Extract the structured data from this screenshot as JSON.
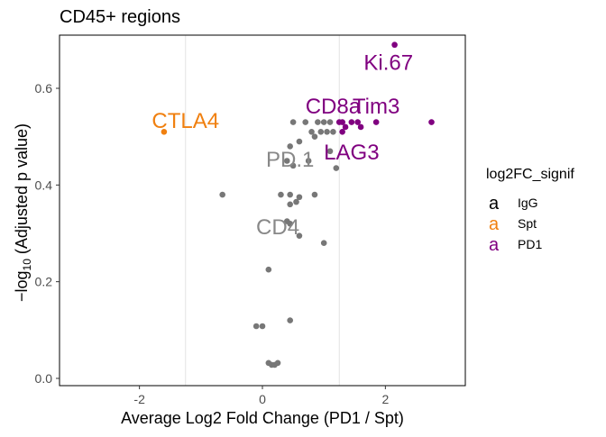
{
  "chart_data": {
    "type": "scatter",
    "title": "CD45+ regions",
    "xlabel": "Average Log2 Fold Change (PD1 / Spt)",
    "ylabel_prefix": "−log",
    "ylabel_sub": "10",
    "ylabel_suffix": " (Adjusted p value)",
    "xlim": [
      -3.3,
      3.3
    ],
    "ylim": [
      -0.015,
      0.71
    ],
    "x_ticks": [
      {
        "value": -2,
        "label": "-2"
      },
      {
        "value": 0,
        "label": "0"
      },
      {
        "value": 2,
        "label": "2"
      }
    ],
    "y_ticks": [
      {
        "value": 0.0,
        "label": "0.0"
      },
      {
        "value": 0.2,
        "label": "0.2"
      },
      {
        "value": 0.4,
        "label": "0.4"
      },
      {
        "value": 0.6,
        "label": "0.6"
      }
    ],
    "vlines": [
      -1.25,
      1.25
    ],
    "legend": {
      "title": "log2FC_signif",
      "placement": "right",
      "entries": [
        {
          "key": "a",
          "label": "IgG",
          "color": "#000000"
        },
        {
          "key": "a",
          "label": "Spt",
          "color": "#F08010"
        },
        {
          "key": "a",
          "label": "PD1",
          "color": "#800080"
        }
      ]
    },
    "series": [
      {
        "name": "ns",
        "color": "#777777",
        "points": [
          [
            0.5,
            0.53
          ],
          [
            0.7,
            0.53
          ],
          [
            0.9,
            0.53
          ],
          [
            1.0,
            0.53
          ],
          [
            1.1,
            0.53
          ],
          [
            0.8,
            0.51
          ],
          [
            0.95,
            0.51
          ],
          [
            1.05,
            0.51
          ],
          [
            1.15,
            0.51
          ],
          [
            0.6,
            0.49
          ],
          [
            0.85,
            0.5
          ],
          [
            0.45,
            0.48
          ],
          [
            1.1,
            0.47
          ],
          [
            0.4,
            0.45
          ],
          [
            0.5,
            0.44
          ],
          [
            0.75,
            0.45
          ],
          [
            1.2,
            0.435
          ],
          [
            -0.65,
            0.38
          ],
          [
            0.3,
            0.38
          ],
          [
            0.45,
            0.38
          ],
          [
            0.6,
            0.375
          ],
          [
            0.85,
            0.38
          ],
          [
            0.45,
            0.36
          ],
          [
            0.55,
            0.365
          ],
          [
            0.4,
            0.325
          ],
          [
            0.45,
            0.32
          ],
          [
            0.6,
            0.295
          ],
          [
            1.0,
            0.28
          ],
          [
            0.1,
            0.225
          ],
          [
            0.45,
            0.12
          ],
          [
            -0.1,
            0.108
          ],
          [
            0.0,
            0.108
          ],
          [
            0.1,
            0.032
          ],
          [
            0.15,
            0.028
          ],
          [
            0.2,
            0.028
          ],
          [
            0.25,
            0.032
          ]
        ]
      },
      {
        "name": "Spt",
        "color": "#F08010",
        "points": [
          [
            -1.6,
            0.51
          ]
        ]
      },
      {
        "name": "PD1",
        "color": "#800080",
        "points": [
          [
            2.15,
            0.69
          ],
          [
            2.75,
            0.53
          ],
          [
            1.85,
            0.53
          ],
          [
            1.25,
            0.53
          ],
          [
            1.3,
            0.53
          ],
          [
            1.45,
            0.53
          ],
          [
            1.55,
            0.53
          ],
          [
            1.35,
            0.52
          ],
          [
            1.6,
            0.52
          ],
          [
            1.3,
            0.51
          ]
        ]
      }
    ],
    "annotations": [
      {
        "text": "Ki.67",
        "x": 2.05,
        "y": 0.655,
        "color": "#800080"
      },
      {
        "text": "Tim3",
        "x": 1.85,
        "y": 0.565,
        "color": "#800080"
      },
      {
        "text": "CD8a",
        "x": 1.15,
        "y": 0.565,
        "color": "#800080"
      },
      {
        "text": "LAG3",
        "x": 1.45,
        "y": 0.47,
        "color": "#800080"
      },
      {
        "text": "CTLA4",
        "x": -1.25,
        "y": 0.535,
        "color": "#F08010"
      },
      {
        "text": "PD.1",
        "x": 0.45,
        "y": 0.455,
        "color": "#888888"
      },
      {
        "text": "CD4",
        "x": 0.25,
        "y": 0.315,
        "color": "#888888"
      }
    ]
  }
}
